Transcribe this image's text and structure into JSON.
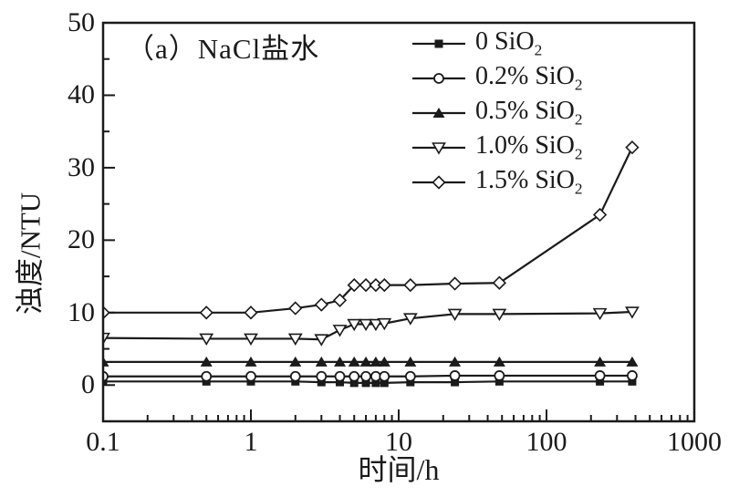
{
  "figure": {
    "background_color": "#ffffff",
    "foreground_color": "#1a1a1a",
    "annotation": "（a）NaCl盐水"
  },
  "chart_data": {
    "type": "line",
    "title": "（a）NaCl盐水",
    "xlabel": "时间/h",
    "ylabel": "浊度/NTU",
    "x_scale": "log",
    "xlim": [
      0.1,
      1000
    ],
    "ylim": [
      -5,
      50
    ],
    "x_ticks": [
      "0.1",
      "1",
      "10",
      "100",
      "1000"
    ],
    "y_ticks": [
      "0",
      "10",
      "20",
      "30",
      "40",
      "50"
    ],
    "grid": false,
    "legend_position": "top-center-inside",
    "line_color": "#1a1a1a",
    "open_marker_fill": "#ffffff",
    "x": [
      0.1,
      0.5,
      1,
      2,
      3,
      4,
      5,
      6,
      7,
      8,
      12,
      24,
      48,
      230,
      380
    ],
    "series": [
      {
        "name": "0 SiO₂",
        "marker": "square-filled",
        "values": [
          0.5,
          0.5,
          0.5,
          0.5,
          0.4,
          0.4,
          0.3,
          0.3,
          0.3,
          0.3,
          0.4,
          0.4,
          0.5,
          0.5,
          0.5
        ]
      },
      {
        "name": "0.2% SiO₂",
        "marker": "circle-open",
        "values": [
          1.2,
          1.2,
          1.2,
          1.2,
          1.2,
          1.2,
          1.2,
          1.2,
          1.2,
          1.2,
          1.2,
          1.3,
          1.3,
          1.3,
          1.3
        ]
      },
      {
        "name": "0.5% SiO₂",
        "marker": "triangle-up-filled",
        "values": [
          3.2,
          3.2,
          3.2,
          3.2,
          3.2,
          3.2,
          3.2,
          3.2,
          3.2,
          3.2,
          3.2,
          3.2,
          3.2,
          3.2,
          3.2
        ]
      },
      {
        "name": "1.0% SiO₂",
        "marker": "triangle-down-open",
        "values": [
          6.5,
          6.4,
          6.4,
          6.4,
          6.3,
          7.6,
          8.4,
          8.4,
          8.4,
          8.5,
          9.2,
          9.8,
          9.8,
          9.9,
          10.1
        ]
      },
      {
        "name": "1.5% SiO₂",
        "marker": "diamond-open",
        "values": [
          10,
          10,
          10,
          10.6,
          11.1,
          11.7,
          13.8,
          13.8,
          13.8,
          13.8,
          13.8,
          14.0,
          14.1,
          23.5,
          32.8
        ]
      }
    ]
  }
}
